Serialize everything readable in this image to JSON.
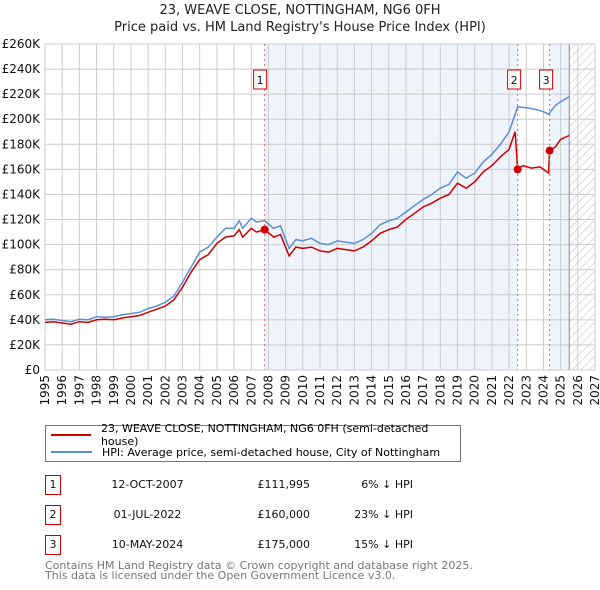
{
  "title_line1": "23, WEAVE CLOSE, NOTTINGHAM, NG6 0FH",
  "title_line2": "Price paid vs. HM Land Registry's House Price Index (HPI)",
  "colors": {
    "property": "#cc0000",
    "hpi": "#5b8fd4",
    "shade": "#eef3fc",
    "grid": "#cccccc"
  },
  "chart_data": {
    "type": "line",
    "title": "23, WEAVE CLOSE, NOTTINGHAM, NG6 0FH — Price paid vs. HM Land Registry's House Price Index (HPI)",
    "xlabel": "",
    "ylabel": "",
    "xlim": [
      1995,
      2027
    ],
    "ylim": [
      0,
      260000
    ],
    "grid": true,
    "x_ticks": [
      "1995",
      "1996",
      "1997",
      "1998",
      "1999",
      "2000",
      "2001",
      "2002",
      "2003",
      "2004",
      "2005",
      "2006",
      "2007",
      "2008",
      "2009",
      "2010",
      "2011",
      "2012",
      "2013",
      "2014",
      "2015",
      "2016",
      "2017",
      "2018",
      "2019",
      "2020",
      "2021",
      "2022",
      "2023",
      "2024",
      "2025",
      "2026",
      "2027"
    ],
    "y_ticks": [
      "£0",
      "£20K",
      "£40K",
      "£60K",
      "£80K",
      "£100K",
      "£120K",
      "£140K",
      "£160K",
      "£180K",
      "£200K",
      "£220K",
      "£240K",
      "£260K"
    ],
    "forecast_from": 2025.5,
    "series": [
      {
        "name": "23, WEAVE CLOSE, NOTTINGHAM, NG6 0FH (semi-detached house)",
        "color": "#cc0000",
        "points": [
          [
            1995,
            38000
          ],
          [
            1995.5,
            38500
          ],
          [
            1996,
            37500
          ],
          [
            1996.5,
            36500
          ],
          [
            1997,
            38500
          ],
          [
            1997.5,
            38000
          ],
          [
            1998,
            40000
          ],
          [
            1998.5,
            40500
          ],
          [
            1999,
            40000
          ],
          [
            1999.5,
            41500
          ],
          [
            2000,
            42500
          ],
          [
            2000.5,
            43500
          ],
          [
            2001,
            46000
          ],
          [
            2001.5,
            48500
          ],
          [
            2002,
            51000
          ],
          [
            2002.5,
            56000
          ],
          [
            2003,
            66000
          ],
          [
            2003.5,
            78000
          ],
          [
            2004,
            88000
          ],
          [
            2004.5,
            92000
          ],
          [
            2005,
            101000
          ],
          [
            2005.5,
            106000
          ],
          [
            2006,
            107000
          ],
          [
            2006.3,
            112000
          ],
          [
            2006.5,
            106000
          ],
          [
            2007,
            113000
          ],
          [
            2007.3,
            110000
          ],
          [
            2007.78,
            111995
          ],
          [
            2008.3,
            106000
          ],
          [
            2008.7,
            108000
          ],
          [
            2009.2,
            91000
          ],
          [
            2009.6,
            98000
          ],
          [
            2010,
            97000
          ],
          [
            2010.5,
            98000
          ],
          [
            2011,
            95000
          ],
          [
            2011.5,
            94000
          ],
          [
            2012,
            97000
          ],
          [
            2012.5,
            96000
          ],
          [
            2013,
            95000
          ],
          [
            2013.5,
            98000
          ],
          [
            2014,
            103000
          ],
          [
            2014.5,
            109000
          ],
          [
            2015,
            112000
          ],
          [
            2015.5,
            114000
          ],
          [
            2016,
            120000
          ],
          [
            2016.5,
            125000
          ],
          [
            2017,
            130000
          ],
          [
            2017.5,
            133000
          ],
          [
            2018,
            137000
          ],
          [
            2018.5,
            140000
          ],
          [
            2019,
            149000
          ],
          [
            2019.5,
            145000
          ],
          [
            2020,
            150000
          ],
          [
            2020.5,
            158000
          ],
          [
            2021,
            163000
          ],
          [
            2021.5,
            170000
          ],
          [
            2022,
            176000
          ],
          [
            2022.35,
            190000
          ],
          [
            2022.5,
            160000
          ],
          [
            2022.8,
            163000
          ],
          [
            2023.3,
            161000
          ],
          [
            2023.8,
            162000
          ],
          [
            2024.3,
            157000
          ],
          [
            2024.36,
            175000
          ],
          [
            2024.7,
            178000
          ],
          [
            2025,
            184000
          ],
          [
            2025.5,
            187000
          ]
        ]
      },
      {
        "name": "HPI: Average price, semi-detached house, City of Nottingham",
        "color": "#5b8fd4",
        "points": [
          [
            1995,
            40000
          ],
          [
            1995.5,
            40500
          ],
          [
            1996,
            39500
          ],
          [
            1996.5,
            38500
          ],
          [
            1997,
            40500
          ],
          [
            1997.5,
            40000
          ],
          [
            1998,
            42500
          ],
          [
            1998.5,
            42000
          ],
          [
            1999,
            42500
          ],
          [
            1999.5,
            44000
          ],
          [
            2000,
            45000
          ],
          [
            2000.5,
            46000
          ],
          [
            2001,
            49000
          ],
          [
            2001.5,
            51000
          ],
          [
            2002,
            54000
          ],
          [
            2002.5,
            59000
          ],
          [
            2003,
            70000
          ],
          [
            2003.5,
            82000
          ],
          [
            2004,
            94000
          ],
          [
            2004.5,
            98000
          ],
          [
            2005,
            106000
          ],
          [
            2005.5,
            113000
          ],
          [
            2006,
            113000
          ],
          [
            2006.3,
            119000
          ],
          [
            2006.5,
            113000
          ],
          [
            2007,
            121000
          ],
          [
            2007.3,
            118000
          ],
          [
            2007.78,
            119000
          ],
          [
            2008.3,
            113000
          ],
          [
            2008.7,
            115000
          ],
          [
            2009.2,
            97000
          ],
          [
            2009.6,
            104000
          ],
          [
            2010,
            103000
          ],
          [
            2010.5,
            105000
          ],
          [
            2011,
            101000
          ],
          [
            2011.5,
            100000
          ],
          [
            2012,
            103000
          ],
          [
            2012.5,
            102000
          ],
          [
            2013,
            101000
          ],
          [
            2013.5,
            104000
          ],
          [
            2014,
            109000
          ],
          [
            2014.5,
            116000
          ],
          [
            2015,
            119000
          ],
          [
            2015.5,
            121000
          ],
          [
            2016,
            126000
          ],
          [
            2016.5,
            131000
          ],
          [
            2017,
            136000
          ],
          [
            2017.5,
            140000
          ],
          [
            2018,
            145000
          ],
          [
            2018.5,
            148000
          ],
          [
            2019,
            158000
          ],
          [
            2019.5,
            153000
          ],
          [
            2020,
            157000
          ],
          [
            2020.5,
            166000
          ],
          [
            2021,
            172000
          ],
          [
            2021.5,
            180000
          ],
          [
            2022,
            190000
          ],
          [
            2022.5,
            210000
          ],
          [
            2023,
            209000
          ],
          [
            2023.5,
            208000
          ],
          [
            2024,
            206000
          ],
          [
            2024.3,
            204000
          ],
          [
            2024.7,
            211000
          ],
          [
            2025,
            214000
          ],
          [
            2025.5,
            218000
          ]
        ]
      }
    ],
    "annotations": [
      {
        "label": "1",
        "x": 2007.78,
        "y": 111995
      },
      {
        "label": "2",
        "x": 2022.5,
        "y": 160000
      },
      {
        "label": "3",
        "x": 2024.36,
        "y": 175000
      }
    ]
  },
  "legend": {
    "property": "23, WEAVE CLOSE, NOTTINGHAM, NG6 0FH (semi-detached house)",
    "hpi": "HPI: Average price, semi-detached house, City of Nottingham"
  },
  "transactions": [
    {
      "num": "1",
      "date": "12-OCT-2007",
      "price": "£111,995",
      "pct": "6% ↓ HPI"
    },
    {
      "num": "2",
      "date": "01-JUL-2022",
      "price": "£160,000",
      "pct": "23% ↓ HPI"
    },
    {
      "num": "3",
      "date": "10-MAY-2024",
      "price": "£175,000",
      "pct": "15% ↓ HPI"
    }
  ],
  "footer": {
    "line1": "Contains HM Land Registry data © Crown copyright and database right 2025.",
    "line2": "This data is licensed under the Open Government Licence v3.0."
  }
}
